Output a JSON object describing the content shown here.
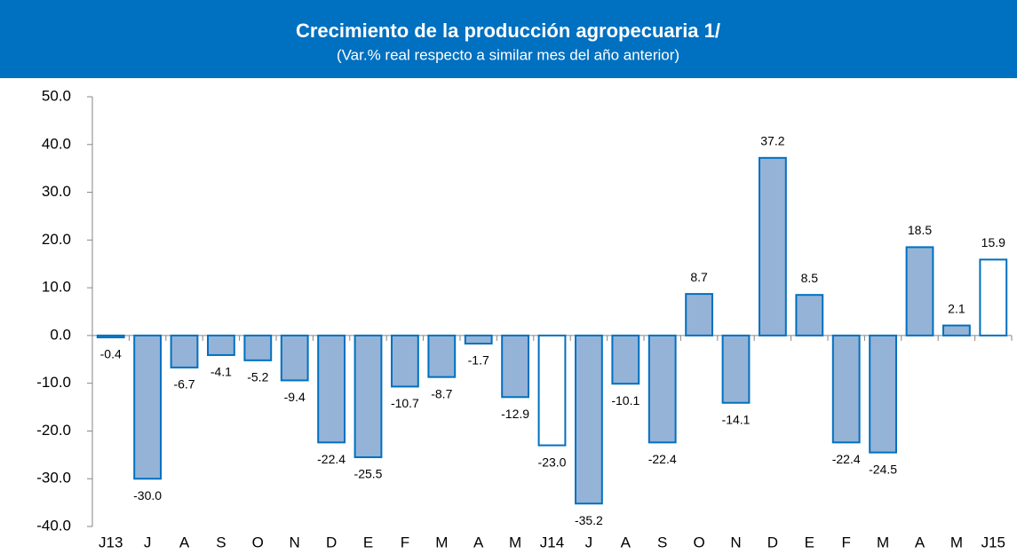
{
  "chart_data": {
    "type": "bar",
    "title": "Crecimiento de la producción agropecuaria 1/",
    "subtitle": "(Var.% real respecto a similar mes del año anterior)",
    "categories": [
      "J13",
      "J",
      "A",
      "S",
      "O",
      "N",
      "D",
      "E",
      "F",
      "M",
      "A",
      "M",
      "J14",
      "J",
      "A",
      "S",
      "O",
      "N",
      "D",
      "E",
      "F",
      "M",
      "A",
      "M",
      "J15"
    ],
    "values": [
      -0.4,
      -30.0,
      -6.7,
      -4.1,
      -5.2,
      -9.4,
      -22.4,
      -25.5,
      -10.7,
      -8.7,
      -1.7,
      -12.9,
      -23.0,
      -35.2,
      -10.1,
      -22.4,
      8.7,
      -14.1,
      37.2,
      8.5,
      -22.4,
      -24.5,
      18.5,
      2.1,
      15.9
    ],
    "value_labels": [
      "-0.4",
      "-30.0",
      "-6.7",
      "-4.1",
      "-5.2",
      "-9.4",
      "-22.4",
      "-25.5",
      "-10.7",
      "-8.7",
      "-1.7",
      "-12.9",
      "-23.0",
      "-35.2",
      "-10.1",
      "-22.4",
      "8.7",
      "-14.1",
      "37.2",
      "8.5",
      "-22.4",
      "-24.5",
      "18.5",
      "2.1",
      "15.9"
    ],
    "colors": [
      "#95b3d7",
      "#95b3d7",
      "#95b3d7",
      "#95b3d7",
      "#95b3d7",
      "#95b3d7",
      "#95b3d7",
      "#95b3d7",
      "#95b3d7",
      "#95b3d7",
      "#95b3d7",
      "#95b3d7",
      "#ffffff",
      "#95b3d7",
      "#95b3d7",
      "#95b3d7",
      "#95b3d7",
      "#95b3d7",
      "#95b3d7",
      "#95b3d7",
      "#95b3d7",
      "#95b3d7",
      "#95b3d7",
      "#95b3d7",
      "#ffffff"
    ],
    "edge_color": "#0070c0",
    "ylim": [
      -40,
      50
    ],
    "yticks": [
      {
        "value": -40,
        "label": "-40.0"
      },
      {
        "value": -30,
        "label": "-30.0"
      },
      {
        "value": -20,
        "label": "-20.0"
      },
      {
        "value": -10,
        "label": "-10.0"
      },
      {
        "value": 0,
        "label": "0.0"
      },
      {
        "value": 10,
        "label": "10.0"
      },
      {
        "value": 20,
        "label": "20.0"
      },
      {
        "value": 30,
        "label": "30.0"
      },
      {
        "value": 40,
        "label": "40.0"
      },
      {
        "value": 50,
        "label": "50.0"
      }
    ],
    "grid": false
  }
}
